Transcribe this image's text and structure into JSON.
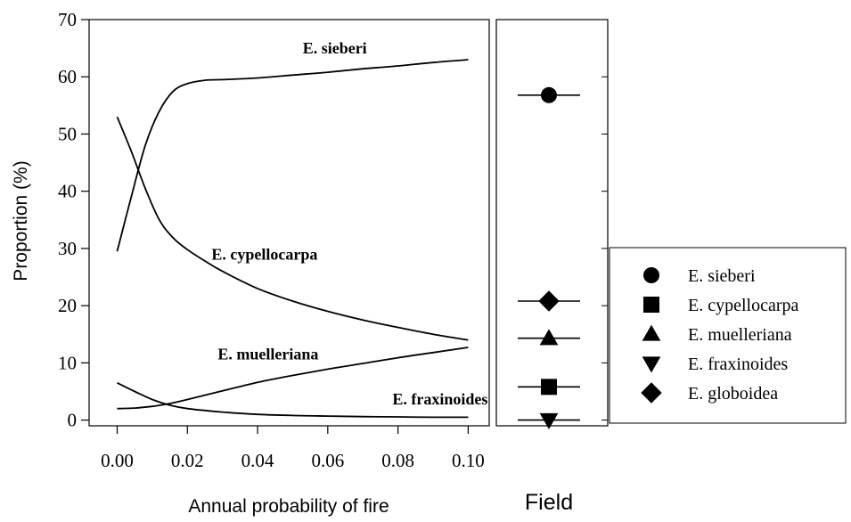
{
  "chart_data": {
    "type": "line",
    "xlabel": "Annual probability of fire",
    "ylabel": "Proportion (%)",
    "xlim": [
      -0.008,
      0.106
    ],
    "ylim": [
      -1,
      70
    ],
    "x_ticks": [
      "0.00",
      "0.02",
      "0.04",
      "0.06",
      "0.08",
      "0.10"
    ],
    "y_ticks": [
      "0",
      "10",
      "20",
      "30",
      "40",
      "50",
      "60",
      "70"
    ],
    "grid": false,
    "series": [
      {
        "name": "E. sieberi",
        "color": "#000000",
        "points": [
          [
            0.0,
            29.5
          ],
          [
            0.004,
            39
          ],
          [
            0.008,
            48
          ],
          [
            0.012,
            54
          ],
          [
            0.016,
            57.5
          ],
          [
            0.02,
            58.8
          ],
          [
            0.025,
            59.4
          ],
          [
            0.03,
            59.5
          ],
          [
            0.04,
            59.8
          ],
          [
            0.05,
            60.3
          ],
          [
            0.06,
            60.8
          ],
          [
            0.07,
            61.4
          ],
          [
            0.08,
            61.9
          ],
          [
            0.09,
            62.5
          ],
          [
            0.1,
            63
          ]
        ]
      },
      {
        "name": "E. cypellocarpa",
        "color": "#000000",
        "points": [
          [
            0.0,
            53
          ],
          [
            0.004,
            47
          ],
          [
            0.008,
            40.5
          ],
          [
            0.012,
            35
          ],
          [
            0.016,
            31.8
          ],
          [
            0.02,
            29.8
          ],
          [
            0.025,
            27.8
          ],
          [
            0.03,
            26
          ],
          [
            0.04,
            23
          ],
          [
            0.05,
            20.8
          ],
          [
            0.06,
            19
          ],
          [
            0.07,
            17.5
          ],
          [
            0.08,
            16.2
          ],
          [
            0.09,
            15
          ],
          [
            0.1,
            14
          ]
        ]
      },
      {
        "name": "E. muelleriana",
        "color": "#000000",
        "points": [
          [
            0.0,
            2
          ],
          [
            0.005,
            2.1
          ],
          [
            0.01,
            2.4
          ],
          [
            0.015,
            2.9
          ],
          [
            0.02,
            3.6
          ],
          [
            0.03,
            5.1
          ],
          [
            0.04,
            6.6
          ],
          [
            0.05,
            7.8
          ],
          [
            0.06,
            8.9
          ],
          [
            0.07,
            9.9
          ],
          [
            0.08,
            10.9
          ],
          [
            0.09,
            11.8
          ],
          [
            0.1,
            12.7
          ]
        ]
      },
      {
        "name": "E. fraxinoides",
        "color": "#000000",
        "points": [
          [
            0.0,
            6.5
          ],
          [
            0.005,
            5
          ],
          [
            0.01,
            3.6
          ],
          [
            0.015,
            2.6
          ],
          [
            0.02,
            2.0
          ],
          [
            0.03,
            1.4
          ],
          [
            0.04,
            1.0
          ],
          [
            0.05,
            0.8
          ],
          [
            0.06,
            0.7
          ],
          [
            0.07,
            0.6
          ],
          [
            0.08,
            0.55
          ],
          [
            0.09,
            0.5
          ],
          [
            0.1,
            0.5
          ]
        ]
      }
    ],
    "annotations": [
      {
        "text": "E. sieberi",
        "x": 0.062,
        "y": 65
      },
      {
        "text": "E. cypellocarpa",
        "x": 0.042,
        "y": 29
      },
      {
        "text": "E. muelleriana",
        "x": 0.043,
        "y": 11.5
      },
      {
        "text": "E. fraxinoides",
        "x": 0.092,
        "y": 3.7
      }
    ],
    "field_panel": {
      "label": "Field",
      "points": [
        {
          "name": "E. sieberi",
          "marker": "circle",
          "value": 56.8
        },
        {
          "name": "E. globoidea",
          "marker": "diamond",
          "value": 20.8
        },
        {
          "name": "E. muelleriana",
          "marker": "triangle-up",
          "value": 14.3
        },
        {
          "name": "E. cypellocarpa",
          "marker": "square",
          "value": 5.8
        },
        {
          "name": "E. fraxinoides",
          "marker": "triangle-down",
          "value": 0
        }
      ]
    },
    "legend": {
      "position": "right",
      "entries": [
        {
          "label": "E. sieberi",
          "marker": "circle"
        },
        {
          "label": "E. cypellocarpa",
          "marker": "square"
        },
        {
          "label": "E. muelleriana",
          "marker": "triangle-up"
        },
        {
          "label": "E. fraxinoides",
          "marker": "triangle-down"
        },
        {
          "label": "E. globoidea",
          "marker": "diamond"
        }
      ]
    }
  }
}
